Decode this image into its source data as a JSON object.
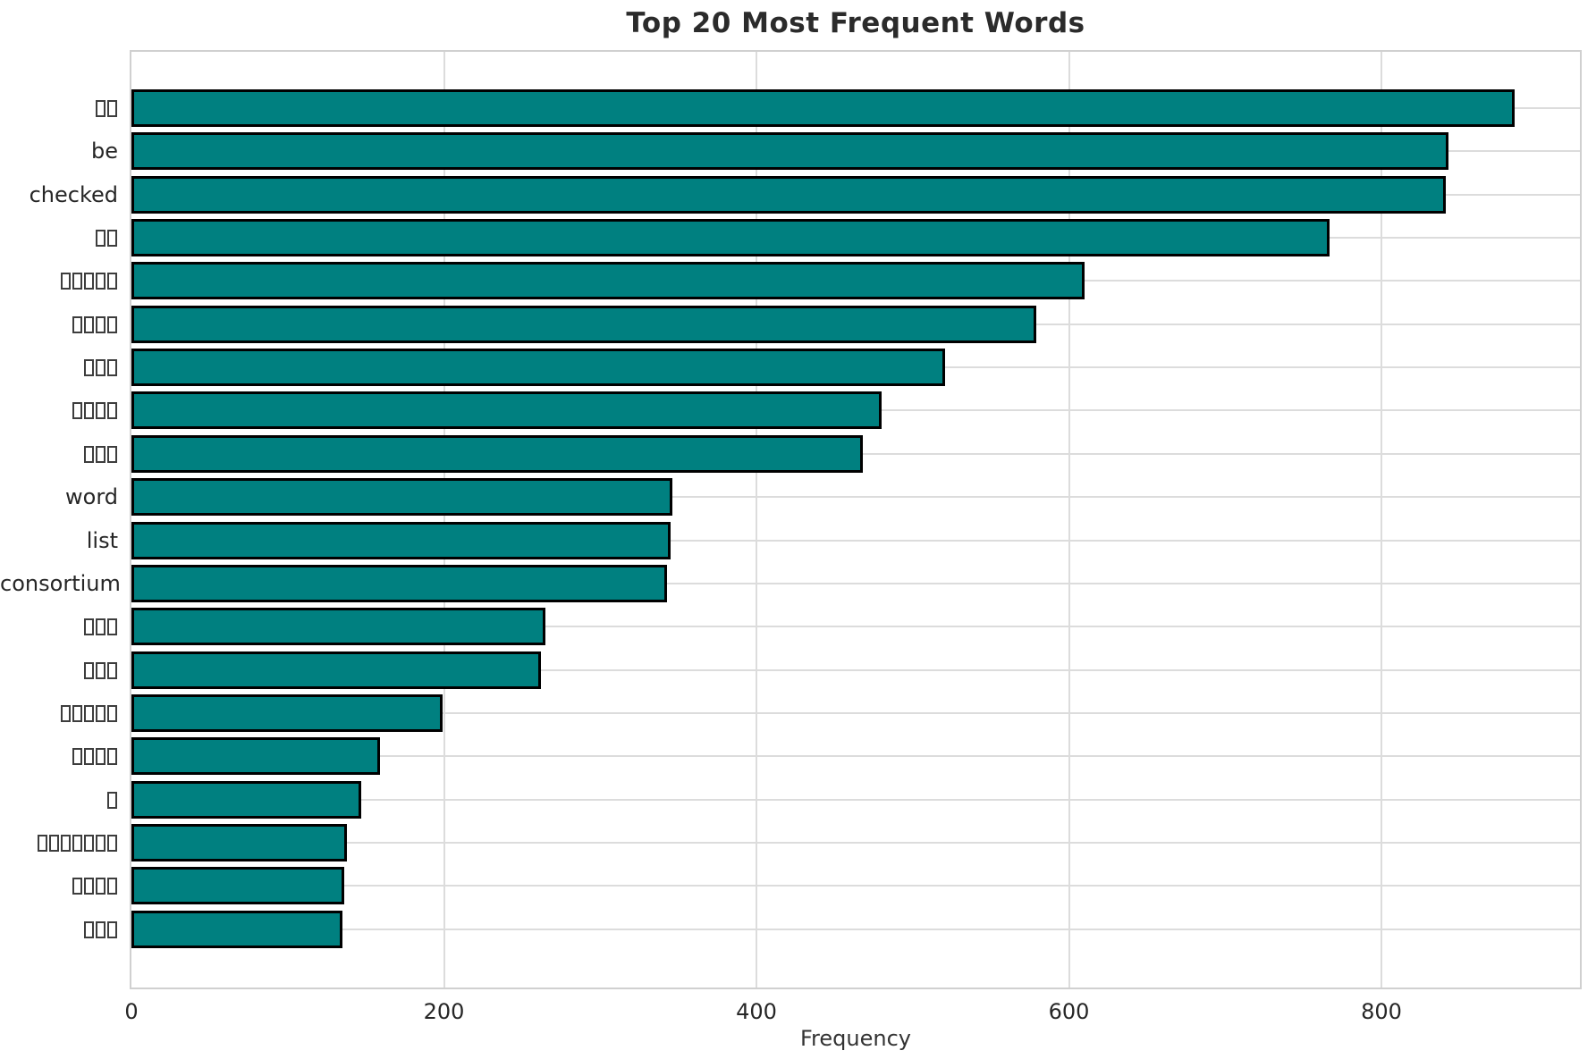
{
  "title": "Top 20 Most Frequent Words",
  "chart_data": {
    "type": "bar",
    "orientation": "horizontal",
    "title": "Top 20 Most Frequent Words",
    "xlabel": "Frequency",
    "ylabel": "",
    "categories": [
      "□□",
      "be",
      "checked",
      "□□",
      "□□□□□",
      "□□□□",
      "□□□",
      "□□□□",
      "□□□",
      "word",
      "list",
      "consortium",
      "□□□",
      "□□□",
      "□□□□□",
      "□□□□",
      "□",
      "□□□□□□□",
      "□□□□",
      "□□□"
    ],
    "values": [
      885,
      843,
      841,
      767,
      610,
      579,
      521,
      480,
      468,
      346,
      345,
      343,
      265,
      262,
      199,
      159,
      147,
      138,
      136,
      135
    ],
    "x_ticks": [
      0,
      200,
      400,
      600,
      800
    ],
    "xlim": [
      0,
      927
    ],
    "grid": true,
    "legend": "none",
    "bar_color": "#008080",
    "bar_edge_color": "#000000",
    "grid_color": "#dcdcdc",
    "text_color": "#262626"
  }
}
